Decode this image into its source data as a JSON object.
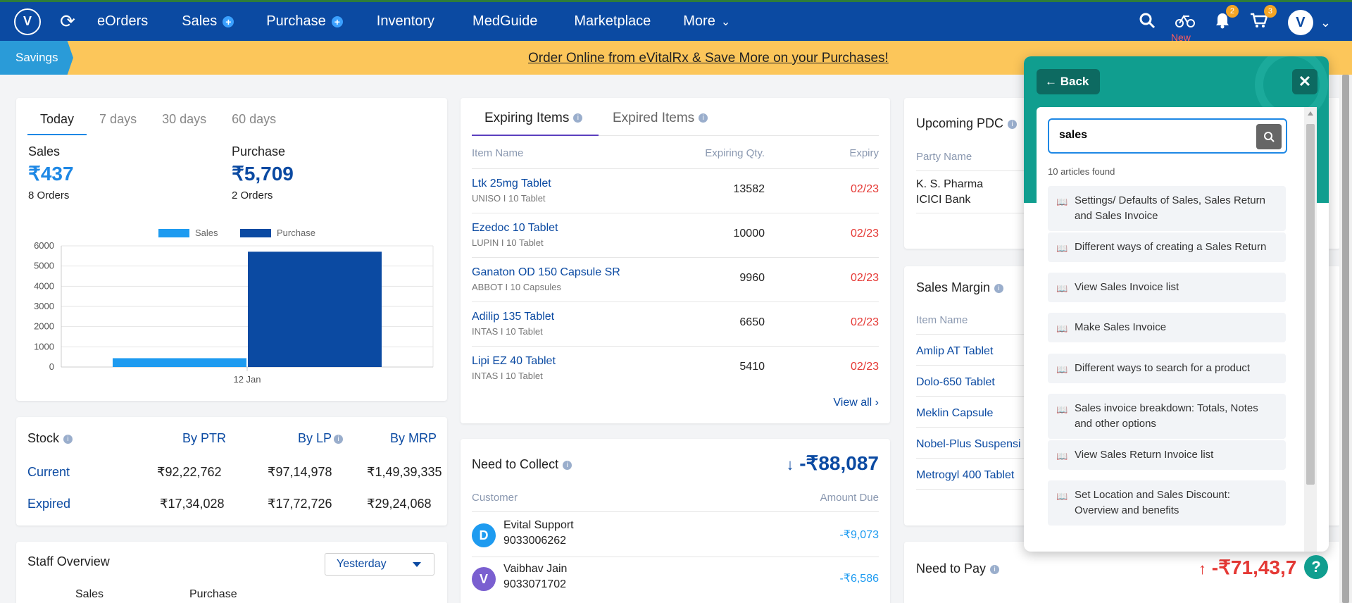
{
  "nav": {
    "items": [
      {
        "label": "eOrders",
        "plus": false
      },
      {
        "label": "Sales",
        "plus": true
      },
      {
        "label": "Purchase",
        "plus": true
      },
      {
        "label": "Inventory",
        "plus": false
      },
      {
        "label": "MedGuide",
        "plus": false
      },
      {
        "label": "Marketplace",
        "plus": false
      },
      {
        "label": "More",
        "plus": false
      }
    ],
    "new_label": "New",
    "notif_count": "2",
    "cart_count": "3",
    "brand_color": "#0b4aa2"
  },
  "banner": {
    "tag": "Savings",
    "text": "Order Online from eVitalRx & Save More on your Purchases!"
  },
  "overview": {
    "tabs": [
      "Today",
      "7 days",
      "30 days",
      "60 days"
    ],
    "sales_label": "Sales",
    "sales_value": "₹437",
    "sales_orders": "8 Orders",
    "purchase_label": "Purchase",
    "purchase_value": "₹5,709",
    "purchase_orders": "2 Orders"
  },
  "chart_data": {
    "type": "bar",
    "categories": [
      "12 Jan"
    ],
    "series": [
      {
        "name": "Sales",
        "values": [
          437
        ],
        "color": "#1e9bf0"
      },
      {
        "name": "Purchase",
        "values": [
          5709
        ],
        "color": "#0b4aa2"
      }
    ],
    "ylim": [
      0,
      6000
    ],
    "yticks": [
      "0",
      "1000",
      "2000",
      "3000",
      "4000",
      "5000",
      "6000"
    ],
    "legend": "top"
  },
  "stock": {
    "title": "Stock",
    "cols": [
      "By PTR",
      "By LP",
      "By MRP"
    ],
    "rows": [
      {
        "label": "Current",
        "values": [
          "₹92,22,762",
          "₹97,14,978",
          "₹1,49,39,335"
        ]
      },
      {
        "label": "Expired",
        "values": [
          "₹17,34,028",
          "₹17,72,726",
          "₹29,24,068"
        ]
      }
    ]
  },
  "staff": {
    "title": "Staff Overview",
    "period": "Yesterday",
    "cols": [
      "Sales",
      "Purchase"
    ]
  },
  "expiring": {
    "tabs": [
      "Expiring Items",
      "Expired Items"
    ],
    "headers": [
      "Item Name",
      "Expiring Qty.",
      "Expiry"
    ],
    "rows": [
      {
        "name": "Ltk 25mg Tablet",
        "sub": "UNISO I 10 Tablet",
        "qty": "13582",
        "exp": "02/23"
      },
      {
        "name": "Ezedoc 10 Tablet",
        "sub": "LUPIN I 10 Tablet",
        "qty": "10000",
        "exp": "02/23"
      },
      {
        "name": "Ganaton OD 150 Capsule SR",
        "sub": "ABBOT I 10 Capsules",
        "qty": "9960",
        "exp": "02/23"
      },
      {
        "name": "Adilip 135 Tablet",
        "sub": "INTAS I 10 Tablet",
        "qty": "6650",
        "exp": "02/23"
      },
      {
        "name": "Lipi EZ 40 Tablet",
        "sub": "INTAS I 10 Tablet",
        "qty": "5410",
        "exp": "02/23"
      }
    ],
    "view_all": "View all"
  },
  "collect": {
    "title": "Need to Collect",
    "total": "-₹88,087",
    "headers": [
      "Customer",
      "Amount Due"
    ],
    "rows": [
      {
        "initial": "D",
        "name": "Evital Support",
        "phone": "9033006262",
        "amount": "-₹9,073"
      },
      {
        "initial": "V",
        "name": "Vaibhav Jain",
        "phone": "9033071702",
        "amount": "-₹6,586"
      }
    ]
  },
  "pdc": {
    "title": "Upcoming PDC",
    "header": "Party Name",
    "party": "K. S. Pharma",
    "bank": "ICICI Bank"
  },
  "margin": {
    "title": "Sales Margin",
    "header": "Item Name",
    "items": [
      "Amlip AT Tablet",
      "Dolo-650 Tablet",
      "Meklin Capsule",
      "Nobel-Plus Suspensi",
      "Metrogyl 400 Tablet"
    ]
  },
  "pay": {
    "title": "Need to Pay",
    "total": "-₹71,43,7"
  },
  "help": {
    "back": "Back",
    "query": "sales",
    "found": "10 articles found",
    "articles": [
      "Settings/ Defaults of Sales, Sales Return and Sales Invoice",
      "Different ways of creating a Sales Return",
      "View Sales Invoice list",
      "Make Sales Invoice",
      "Different ways to search for a product",
      "Sales invoice breakdown: Totals, Notes and other options",
      "View Sales Return Invoice list",
      "Set Location and Sales Discount: Overview and benefits"
    ]
  }
}
